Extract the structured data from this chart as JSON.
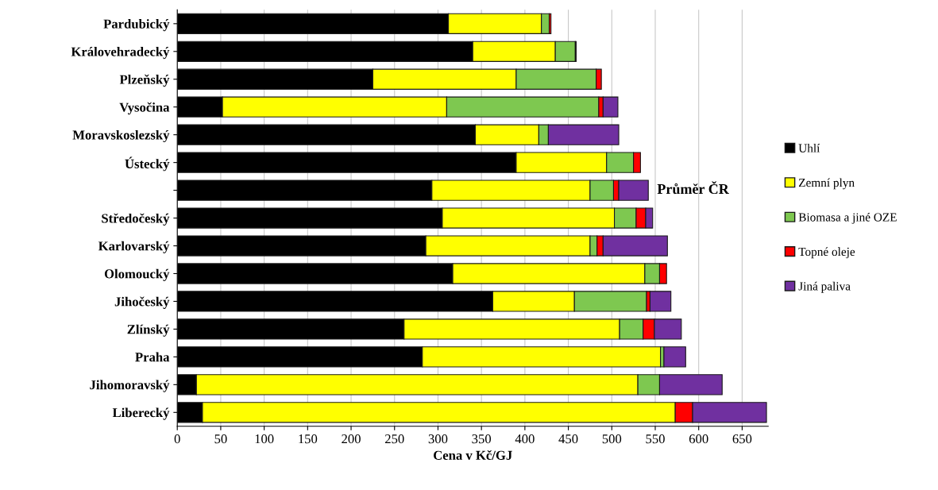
{
  "chart_data": {
    "type": "bar",
    "orientation": "horizontal",
    "stacked": true,
    "xlabel": "Cena v Kč/GJ",
    "categories": [
      "Pardubický",
      "Královehradecký",
      "Plzeňský",
      "Vysočina",
      "Moravskoslezský",
      "Ústecký",
      null,
      "Středočeský",
      "Karlovarský",
      "Olomoucký",
      "Jihočeský",
      "Zlínský",
      "Praha",
      "Jihomoravský",
      "Liberecký"
    ],
    "series": [
      {
        "name": "Uhlí",
        "color": "#000000",
        "values": [
          312,
          340,
          225,
          52,
          343,
          390,
          293,
          305,
          286,
          317,
          363,
          261,
          282,
          22,
          29
        ]
      },
      {
        "name": "Zemní plyn",
        "color": "#ffff00",
        "values": [
          107,
          95,
          165,
          258,
          73,
          104,
          182,
          198,
          189,
          221,
          94,
          248,
          274,
          508,
          544
        ]
      },
      {
        "name": "Biomasa a jiné OZE",
        "color": "#7ec850",
        "values": [
          9,
          23,
          92,
          175,
          11,
          31,
          27,
          25,
          8,
          17,
          83,
          27,
          4,
          25,
          0
        ]
      },
      {
        "name": "Topné oleje",
        "color": "#ff0000",
        "values": [
          2,
          1,
          6,
          5,
          0,
          8,
          6,
          11,
          7,
          8,
          4,
          13,
          0,
          0,
          20
        ]
      },
      {
        "name": "Jiná paliva",
        "color": "#7030a0",
        "values": [
          0,
          0,
          0,
          17,
          81,
          0,
          34,
          8,
          74,
          0,
          24,
          31,
          25,
          72,
          85
        ]
      }
    ],
    "xlim": [
      0,
      680
    ],
    "xticks": [
      0,
      50,
      100,
      150,
      200,
      250,
      300,
      350,
      400,
      450,
      500,
      550,
      600,
      650
    ],
    "annotations": [
      {
        "text": "Průměr ČR",
        "x": 542
      }
    ],
    "grid": "x",
    "legend": "right"
  }
}
